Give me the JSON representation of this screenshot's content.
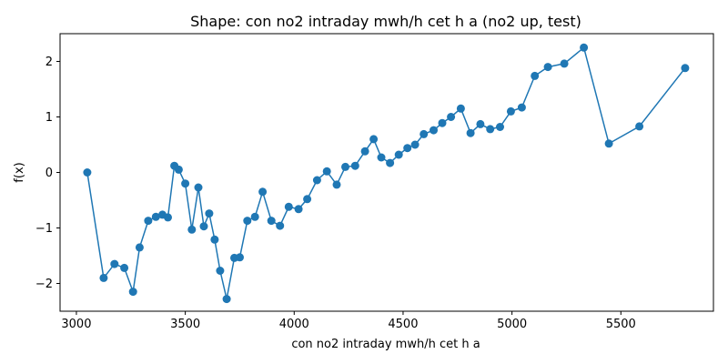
{
  "chart_data": {
    "type": "line",
    "title": "Shape: con no2 intraday mwh/h cet h a (no2 up, test)",
    "xlabel": "con no2 intraday mwh/h cet h a",
    "ylabel": "f(x)",
    "xlim": [
      2925,
      5925
    ],
    "ylim": [
      -2.5,
      2.5
    ],
    "xticks": [
      3000,
      3500,
      4000,
      4500,
      5000,
      5500
    ],
    "yticks": [
      -2,
      -1,
      0,
      1,
      2
    ],
    "ytick_labels": [
      "−2",
      "−1",
      "0",
      "1",
      "2"
    ],
    "grid": false,
    "line_color": "#1f77b4",
    "x": [
      3050,
      3125,
      3175,
      3220,
      3260,
      3290,
      3330,
      3365,
      3395,
      3420,
      3450,
      3470,
      3500,
      3530,
      3560,
      3585,
      3610,
      3635,
      3660,
      3690,
      3725,
      3750,
      3785,
      3820,
      3855,
      3895,
      3935,
      3975,
      4020,
      4060,
      4105,
      4150,
      4195,
      4235,
      4280,
      4325,
      4365,
      4400,
      4440,
      4480,
      4520,
      4555,
      4595,
      4640,
      4680,
      4720,
      4765,
      4810,
      4855,
      4900,
      4945,
      4995,
      5045,
      5105,
      5165,
      5240,
      5330,
      5445,
      5585,
      5795
    ],
    "y": [
      0.0,
      -1.9,
      -1.65,
      -1.72,
      -2.15,
      -1.35,
      -0.87,
      -0.8,
      -0.76,
      -0.81,
      0.12,
      0.05,
      -0.2,
      -1.03,
      -0.27,
      -0.97,
      -0.74,
      -1.21,
      -1.77,
      -2.28,
      -1.54,
      -1.53,
      -0.87,
      -0.8,
      -0.35,
      -0.87,
      -0.96,
      -0.62,
      -0.66,
      -0.48,
      -0.14,
      0.02,
      -0.22,
      0.1,
      0.12,
      0.38,
      0.6,
      0.27,
      0.17,
      0.32,
      0.44,
      0.5,
      0.69,
      0.76,
      0.89,
      1.0,
      1.15,
      0.71,
      0.87,
      0.78,
      0.82,
      1.1,
      1.17,
      1.74,
      1.9,
      1.96,
      2.25,
      0.52,
      0.83,
      1.88
    ]
  }
}
